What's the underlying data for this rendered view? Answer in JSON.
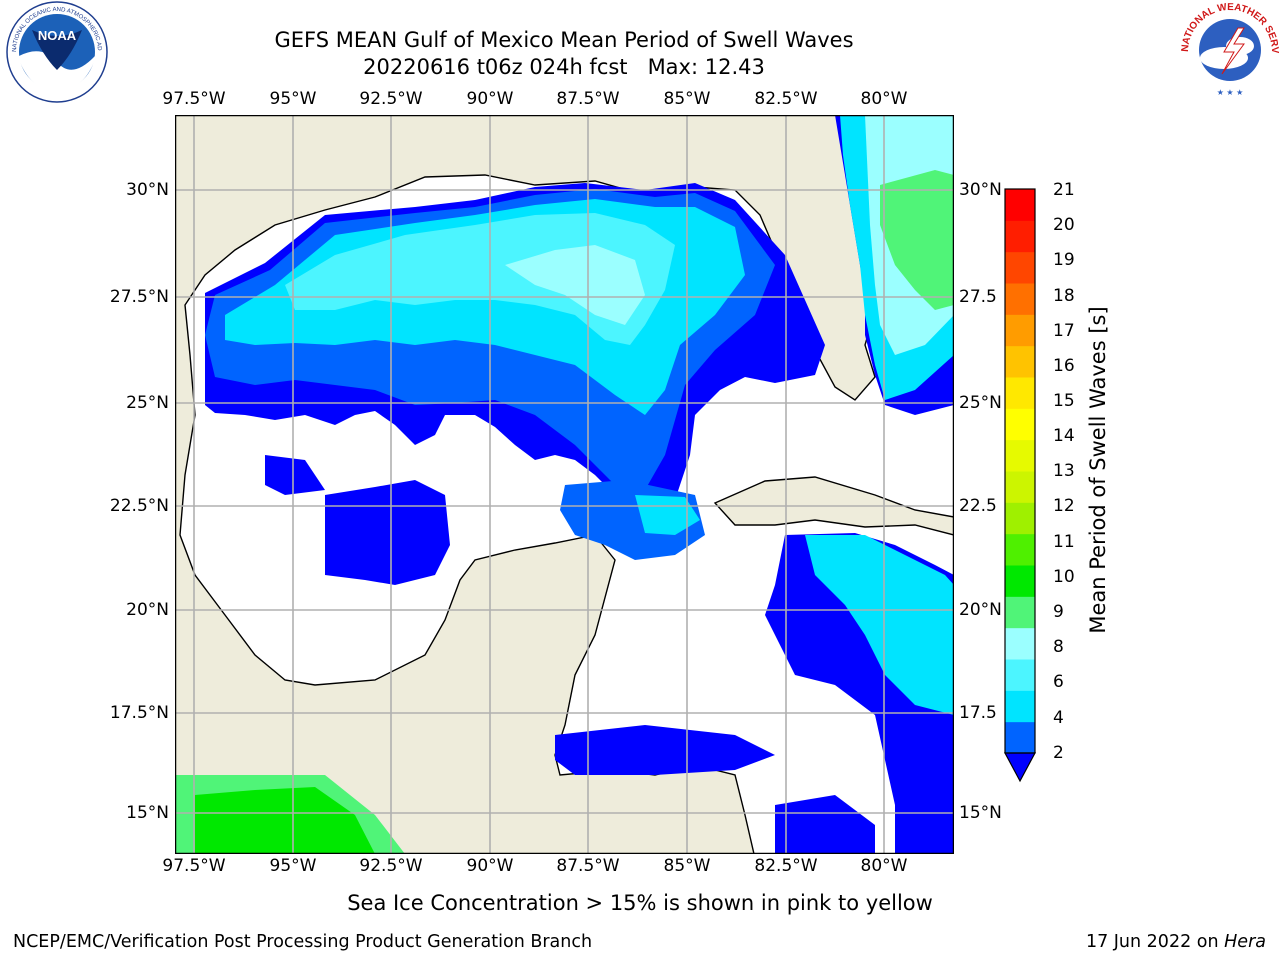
{
  "header": {
    "title_line1": "GEFS MEAN Gulf of Mexico Mean Period of Swell Waves",
    "title_line2": "20220616 t06z 024h fcst   Max: 12.43"
  },
  "logos": {
    "left_text": "NOAA",
    "left_ring": "NATIONAL OCEANIC AND ATMOSPHERIC ADMINISTRATION · U.S. DEPARTMENT OF COMMERCE",
    "right_ring": "NATIONAL WEATHER SERVICE"
  },
  "map": {
    "lon_labels": [
      "97.5°W",
      "95°W",
      "92.5°W",
      "90°W",
      "87.5°W",
      "85°W",
      "82.5°W",
      "80°W"
    ],
    "lat_labels_left": [
      "30°N",
      "27.5°N",
      "25°N",
      "22.5°N",
      "20°N",
      "17.5°N",
      "15°N"
    ],
    "lat_labels_right": [
      "30°N",
      "27.5",
      "25°N",
      "22.5",
      "20°N",
      "17.5",
      "15°N"
    ],
    "land_color": "#eeecdb",
    "grid_color": "#b0b0b0"
  },
  "colorbar": {
    "label": "Mean Period of Swell Waves [s]",
    "ticks": [
      "21",
      "20",
      "19",
      "18",
      "17",
      "16",
      "15",
      "14",
      "13",
      "12",
      "11",
      "10",
      "9",
      "8",
      "6",
      "4",
      "2"
    ],
    "colors_bottom_to_top": [
      "#0064ff",
      "#00e4ff",
      "#4cf5ff",
      "#9bffff",
      "#50f478",
      "#00e800",
      "#4ff000",
      "#9ff000",
      "#ccf500",
      "#e6fa00",
      "#ffff00",
      "#ffe800",
      "#ffc300",
      "#ff9c00",
      "#ff7000",
      "#ff4600",
      "#ff1e00",
      "#ff0000"
    ],
    "under_color": "#0000ff"
  },
  "footer": {
    "note": "Sea Ice Concentration > 15% is shown in pink to yellow",
    "credit": "NCEP/EMC/Verification Post Processing Product Generation Branch",
    "date": "17 Jun 2022 on ",
    "host": "Hera"
  }
}
